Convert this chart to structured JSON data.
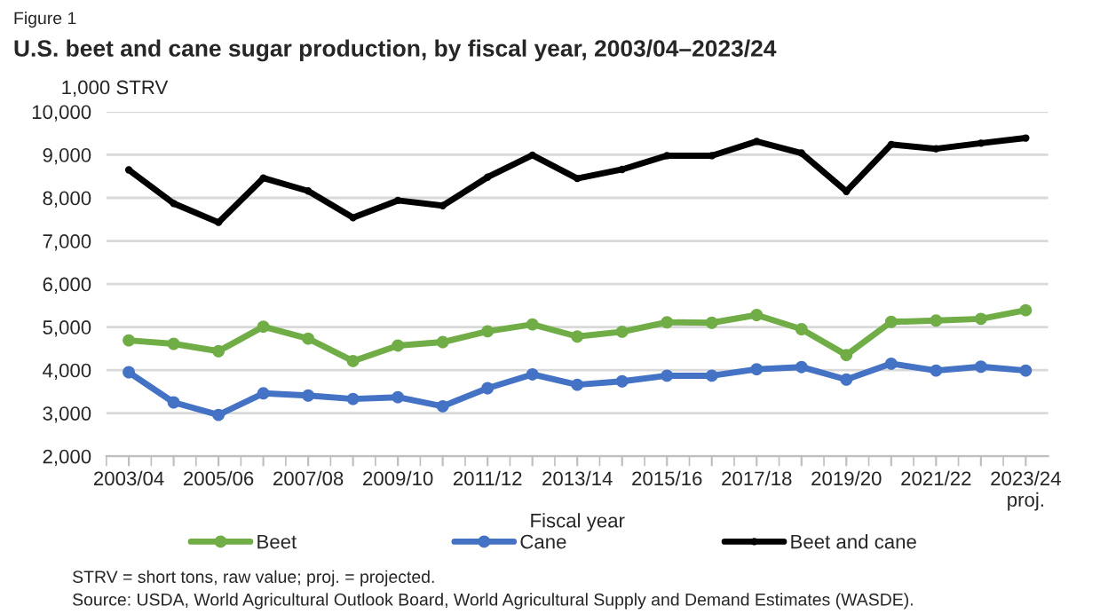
{
  "chart_data": {
    "type": "line",
    "title": "U.S. beet and cane sugar production, by fiscal year, 2003/04–2023/24",
    "ylabel": "1,000 STRV",
    "xlabel": "Fiscal year",
    "annotations": [
      "Figure 1",
      "STRV = short tons, raw value; proj. = projected.",
      "Source: USDA, World Agricultural Outlook Board, World Agricultural Supply and Demand Estimates (WASDE)."
    ],
    "categories": [
      "2003/04",
      null,
      "2005/06",
      null,
      "2007/08",
      null,
      "2009/10",
      null,
      "2011/12",
      null,
      "2013/14",
      null,
      "2015/16",
      null,
      "2017/18",
      null,
      "2019/20",
      null,
      "2021/22",
      null,
      "2023/24\nproj."
    ],
    "series": [
      {
        "name": "Beet",
        "color": "#70ad47",
        "values": [
          4690,
          4610,
          4440,
          5010,
          4730,
          4210,
          4570,
          4650,
          4900,
          5060,
          4780,
          4890,
          5110,
          5100,
          5280,
          4950,
          4350,
          5120,
          5150,
          5190,
          5390
        ]
      },
      {
        "name": "Cane",
        "color": "#4472c4",
        "values": [
          3950,
          3250,
          2960,
          3460,
          3410,
          3330,
          3370,
          3160,
          3580,
          3900,
          3660,
          3740,
          3870,
          3870,
          4020,
          4070,
          3780,
          4150,
          3990,
          4080,
          3990
        ]
      },
      {
        "name": "Beet and cane",
        "color": "#000000",
        "values": [
          8650,
          7870,
          7430,
          8460,
          8160,
          7540,
          7940,
          7820,
          8480,
          8990,
          8450,
          8660,
          8980,
          8980,
          9310,
          9040,
          8150,
          9240,
          9140,
          9270,
          9390
        ]
      }
    ],
    "ylim": [
      2000,
      10000
    ],
    "yticks": [
      {
        "value": 2000,
        "label": "2,000"
      },
      {
        "value": 3000,
        "label": "3,000"
      },
      {
        "value": 4000,
        "label": "4,000"
      },
      {
        "value": 5000,
        "label": "5,000"
      },
      {
        "value": 6000,
        "label": "6,000"
      },
      {
        "value": 7000,
        "label": "7,000"
      },
      {
        "value": 8000,
        "label": "8,000"
      },
      {
        "value": 9000,
        "label": "9,000"
      },
      {
        "value": 10000,
        "label": "10,000"
      }
    ],
    "grid": "y",
    "legend": "bottom",
    "marker": "circle",
    "line_style": "solid"
  }
}
